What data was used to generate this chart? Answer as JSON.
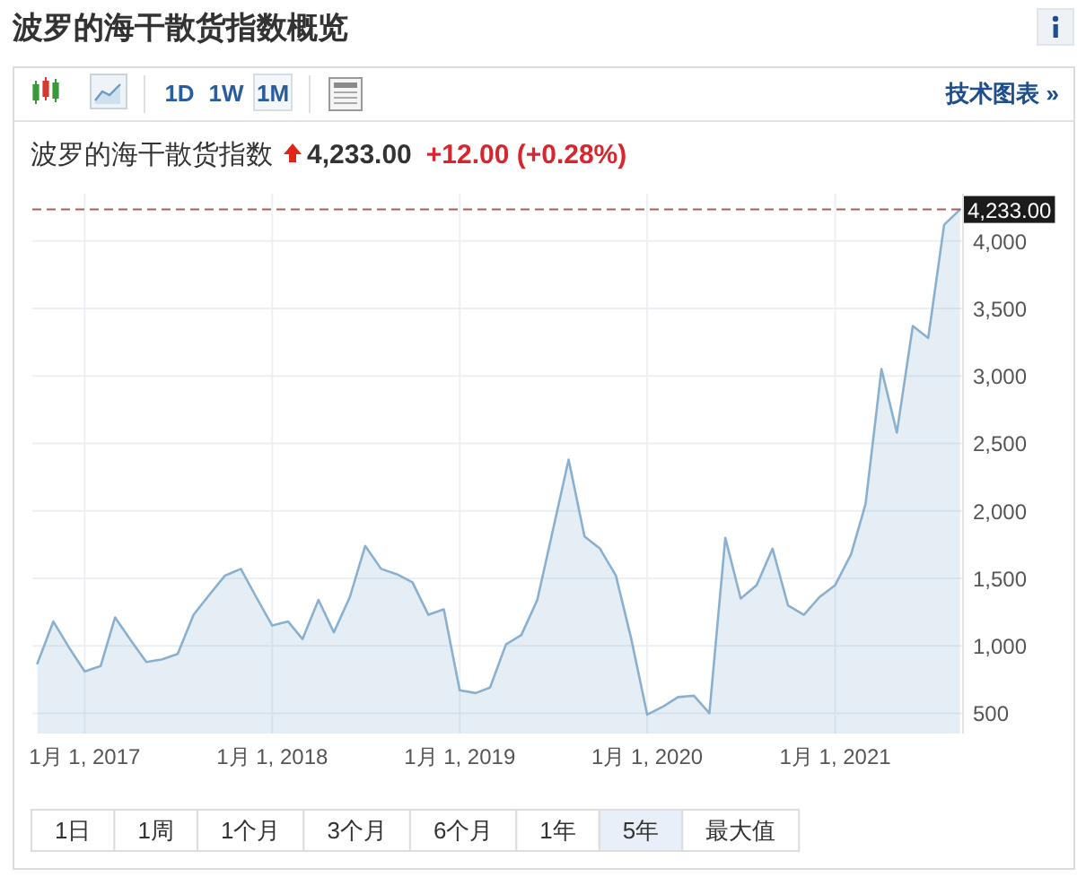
{
  "chart_data": [
    {
      "type": "other",
      "title": "波罗的海干散货指数概览",
      "annotations": [
        "1D",
        "1W",
        "1M",
        "技术图表 »"
      ]
    },
    {
      "type": "area",
      "title": "波罗的海干散货指数",
      "annotations": [
        "4,233.00",
        "+12.00 (+0.28%)"
      ],
      "x": [
        "2016-10",
        "2016-11",
        "2016-12",
        "2017-01",
        "2017-02",
        "2017-03",
        "2017-04",
        "2017-05",
        "2017-06",
        "2017-07",
        "2017-08",
        "2017-09",
        "2017-10",
        "2017-11",
        "2017-12",
        "2018-01",
        "2018-02",
        "2018-03",
        "2018-04",
        "2018-05",
        "2018-06",
        "2018-07",
        "2018-08",
        "2018-09",
        "2018-10",
        "2018-11",
        "2018-12",
        "2019-01",
        "2019-02",
        "2019-03",
        "2019-04",
        "2019-05",
        "2019-06",
        "2019-07",
        "2019-08",
        "2019-09",
        "2019-10",
        "2019-11",
        "2019-12",
        "2020-01",
        "2020-02",
        "2020-03",
        "2020-04",
        "2020-05",
        "2020-06",
        "2020-07",
        "2020-08",
        "2020-09",
        "2020-10",
        "2020-11",
        "2020-12",
        "2021-01",
        "2021-02",
        "2021-03",
        "2021-04",
        "2021-05",
        "2021-06",
        "2021-07",
        "2021-08",
        "2021-09"
      ],
      "values": [
        870,
        1180,
        990,
        810,
        850,
        1210,
        1040,
        880,
        900,
        940,
        1230,
        1380,
        1520,
        1570,
        1360,
        1150,
        1180,
        1050,
        1340,
        1100,
        1360,
        1740,
        1570,
        1530,
        1470,
        1230,
        1270,
        670,
        650,
        690,
        1010,
        1080,
        1340,
        1850,
        2380,
        1810,
        1720,
        1520,
        1050,
        490,
        550,
        620,
        630,
        500,
        1800,
        1350,
        1450,
        1720,
        1300,
        1230,
        1360,
        1450,
        1680,
        2050,
        3050,
        2580,
        3370,
        3280,
        4120,
        4233
      ],
      "color": "#8ab0d0",
      "xlim": [
        "2016-09-21",
        "2021-09-05"
      ],
      "ylim": [
        350,
        4350
      ],
      "xticks": [
        {
          "value": "2017-01-01",
          "label": "1月 1, 2017"
        },
        {
          "value": "2018-01-01",
          "label": "1月 1, 2018"
        },
        {
          "value": "2019-01-01",
          "label": "1月 1, 2019"
        },
        {
          "value": "2020-01-01",
          "label": "1月 1, 2020"
        },
        {
          "value": "2021-01-01",
          "label": "1月 1, 2021"
        }
      ],
      "yticks": [
        500,
        {
          "value": 1000,
          "label": "1,000"
        },
        {
          "value": 1500,
          "label": "1,500"
        },
        {
          "value": 2000,
          "label": "2,000"
        },
        {
          "value": 2500,
          "label": "2,500"
        },
        {
          "value": 3000,
          "label": "3,000"
        },
        {
          "value": 3500,
          "label": "3,500"
        },
        {
          "value": 4000,
          "label": "4,000"
        }
      ],
      "grid": true,
      "ref_lines": [
        {
          "axis": "y",
          "value": 4233,
          "label": "4,233.00",
          "color": "#b05a5a",
          "line_style": "dashed"
        }
      ]
    },
    {
      "type": "other",
      "annotations": [
        "1日",
        "1周",
        "1个月",
        "3个月",
        "6个月",
        "1年",
        "5年",
        "最大值"
      ]
    }
  ]
}
